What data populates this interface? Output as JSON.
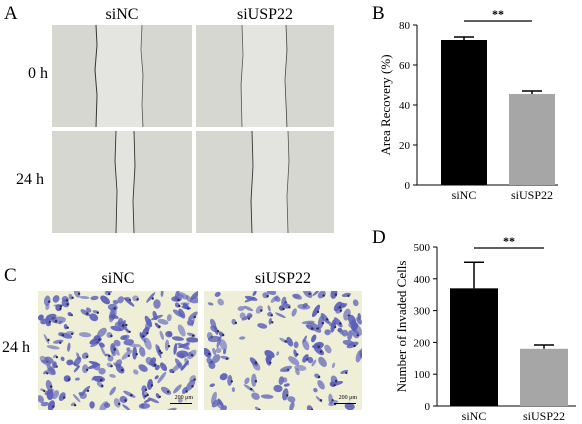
{
  "panels": {
    "a": {
      "letter": "A",
      "columns": [
        "siNC",
        "siUSP22"
      ],
      "rows": [
        "0 h",
        "24 h"
      ]
    },
    "b": {
      "letter": "B"
    },
    "c": {
      "letter": "C",
      "columns": [
        "siNC",
        "siUSP22"
      ],
      "row": "24 h",
      "scale_bar": "200 μm"
    },
    "d": {
      "letter": "D"
    }
  },
  "colors": {
    "bar_siNC": "#000000",
    "bar_siUSP22": "#a6a6a6",
    "stain": "#5a5fb8",
    "background_cells": "#efefd8"
  },
  "chart_data": [
    {
      "type": "bar",
      "categories": [
        "siNC",
        "siUSP22"
      ],
      "values": [
        72.5,
        45.5
      ],
      "errors": [
        1.5,
        1.5
      ],
      "ylabel": "Area Recovery (%)",
      "ylim": [
        0,
        80
      ],
      "yticks": [
        0,
        20,
        40,
        60,
        80
      ],
      "significance": "**",
      "grid": false
    },
    {
      "type": "bar",
      "categories": [
        "siNC",
        "siUSP22"
      ],
      "values": [
        370,
        180
      ],
      "errors": [
        82,
        12
      ],
      "ylabel": "Number of Invaded Cells",
      "ylim": [
        0,
        500
      ],
      "yticks": [
        0,
        100,
        200,
        300,
        400,
        500
      ],
      "significance": "**",
      "grid": false
    }
  ]
}
